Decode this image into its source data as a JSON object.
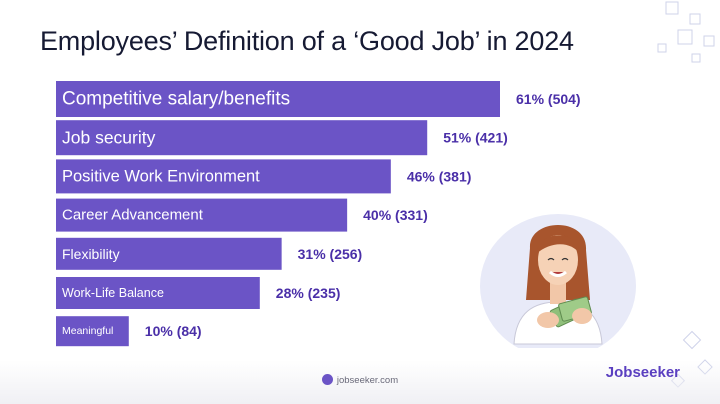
{
  "title": "Employees’ Definition of a ‘Good Job’ in 2024",
  "footer": {
    "site": "jobseeker.com",
    "brand": "Jobseeker"
  },
  "colors": {
    "bar": "#6b54c6",
    "label": "#ffffff",
    "value": "#4a2fa8",
    "title": "#161a33"
  },
  "chart_data": {
    "type": "bar",
    "orientation": "horizontal",
    "title": "Employees’ Definition of a ‘Good Job’ in 2024",
    "categories": [
      "Competitive salary/benefits",
      "Job security",
      "Positive Work Environment",
      "Career Advancement",
      "Flexibility",
      "Work-Life Balance",
      "Meaningful"
    ],
    "values": [
      61,
      51,
      46,
      40,
      31,
      28,
      10
    ],
    "counts": [
      504,
      421,
      381,
      331,
      256,
      235,
      84
    ],
    "data_labels": [
      "61% (504)",
      "51% (421)",
      "46% (381)",
      "40% (331)",
      "31% (256)",
      "28% (235)",
      "10% (84)"
    ],
    "xlim": [
      0,
      61
    ],
    "grid": false,
    "legend": "none"
  }
}
